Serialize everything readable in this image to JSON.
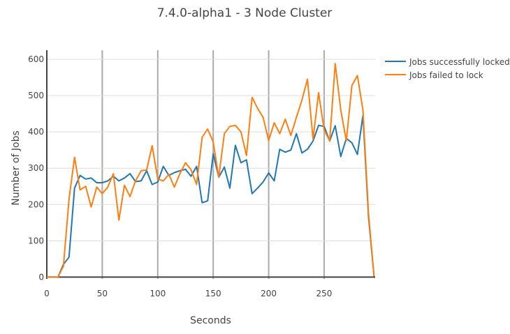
{
  "chart_data": {
    "type": "line",
    "title": "7.4.0-alpha1 - 3 Node Cluster",
    "xlabel": "Seconds",
    "ylabel": "Number of Jobs",
    "xlim": [
      0,
      296
    ],
    "ylim": [
      -5,
      625
    ],
    "xticks": [
      0,
      50,
      100,
      150,
      200,
      250
    ],
    "yticks": [
      0,
      100,
      200,
      300,
      400,
      500,
      600
    ],
    "grid": true,
    "legend_position": "top-right",
    "series": [
      {
        "name": "Jobs successfully locked",
        "color": "#1f77b4",
        "x": [
          0,
          5,
          10,
          15,
          20,
          25,
          30,
          35,
          40,
          45,
          50,
          55,
          60,
          65,
          70,
          75,
          80,
          85,
          90,
          95,
          100,
          105,
          110,
          115,
          120,
          125,
          130,
          135,
          140,
          145,
          150,
          155,
          160,
          165,
          170,
          175,
          180,
          185,
          190,
          195,
          200,
          205,
          210,
          215,
          220,
          225,
          230,
          235,
          240,
          245,
          250,
          255,
          260,
          265,
          270,
          275,
          280,
          285,
          290,
          295
        ],
        "values": [
          0,
          0,
          0,
          35,
          55,
          245,
          280,
          270,
          273,
          260,
          260,
          265,
          278,
          265,
          273,
          285,
          263,
          265,
          293,
          255,
          262,
          305,
          280,
          288,
          293,
          297,
          278,
          305,
          205,
          210,
          340,
          275,
          303,
          245,
          363,
          315,
          323,
          230,
          245,
          262,
          287,
          265,
          352,
          344,
          350,
          395,
          342,
          352,
          375,
          418,
          415,
          375,
          417,
          332,
          382,
          370,
          338,
          445,
          165,
          2
        ]
      },
      {
        "name": "Jobs failed to lock",
        "color": "#ff7f0e",
        "x": [
          0,
          5,
          10,
          15,
          20,
          25,
          30,
          35,
          40,
          45,
          50,
          55,
          60,
          65,
          70,
          75,
          80,
          85,
          90,
          95,
          100,
          105,
          110,
          115,
          120,
          125,
          130,
          135,
          140,
          145,
          150,
          155,
          160,
          165,
          170,
          175,
          180,
          185,
          190,
          195,
          200,
          205,
          210,
          215,
          220,
          225,
          230,
          235,
          240,
          245,
          250,
          255,
          260,
          265,
          270,
          275,
          280,
          285,
          290,
          295
        ],
        "values": [
          0,
          0,
          0,
          30,
          215,
          330,
          240,
          250,
          193,
          248,
          230,
          248,
          285,
          157,
          253,
          222,
          265,
          293,
          295,
          362,
          270,
          265,
          283,
          248,
          285,
          315,
          296,
          255,
          385,
          408,
          372,
          275,
          395,
          415,
          418,
          400,
          335,
          495,
          465,
          440,
          376,
          425,
          395,
          435,
          390,
          440,
          488,
          545,
          380,
          508,
          405,
          375,
          588,
          460,
          375,
          528,
          555,
          460,
          175,
          2
        ]
      }
    ]
  }
}
